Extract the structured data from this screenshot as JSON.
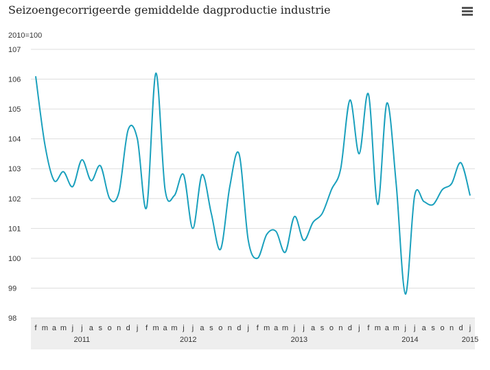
{
  "chart_data": {
    "type": "line",
    "title": "Seizoengecorrigeerde gemiddelde dagproductie industrie",
    "subtitle": "2010=100",
    "categories": [
      "f",
      "m",
      "a",
      "m",
      "j",
      "j",
      "a",
      "s",
      "o",
      "n",
      "d",
      "j",
      "f",
      "m",
      "a",
      "m",
      "j",
      "j",
      "a",
      "s",
      "o",
      "n",
      "d",
      "j",
      "f",
      "m",
      "a",
      "m",
      "j",
      "j",
      "a",
      "s",
      "o",
      "n",
      "d",
      "j",
      "f",
      "m",
      "a",
      "m",
      "j",
      "j",
      "a",
      "s",
      "o",
      "n",
      "d",
      "j"
    ],
    "years": [
      "2011",
      null,
      null,
      null,
      null,
      null,
      null,
      null,
      null,
      null,
      null,
      "2012",
      null,
      null,
      null,
      null,
      null,
      null,
      null,
      null,
      null,
      null,
      null,
      "2013",
      null,
      null,
      null,
      null,
      null,
      null,
      null,
      null,
      null,
      null,
      null,
      "2014",
      null,
      null,
      null,
      null,
      null,
      null,
      null,
      null,
      null,
      null,
      null,
      "2015"
    ],
    "series": [
      {
        "name": "Dagproductie industrie",
        "color": "#1aa0bd",
        "values": [
          106.1,
          103.8,
          102.6,
          102.9,
          102.4,
          103.3,
          102.6,
          103.1,
          102.0,
          102.2,
          104.3,
          104.0,
          101.7,
          106.2,
          102.3,
          102.1,
          102.8,
          101.0,
          102.8,
          101.5,
          100.3,
          102.4,
          103.5,
          100.6,
          100.0,
          100.8,
          100.9,
          100.2,
          101.4,
          100.6,
          101.2,
          101.5,
          102.3,
          103.0,
          105.3,
          103.5,
          105.5,
          101.8,
          105.2,
          102.5,
          98.8,
          102.1,
          101.9,
          101.8,
          102.3,
          102.5,
          103.2,
          102.1
        ]
      }
    ],
    "ylim": [
      98,
      107
    ],
    "yticks": [
      98,
      99,
      100,
      101,
      102,
      103,
      104,
      105,
      106,
      107
    ],
    "grid": true
  }
}
